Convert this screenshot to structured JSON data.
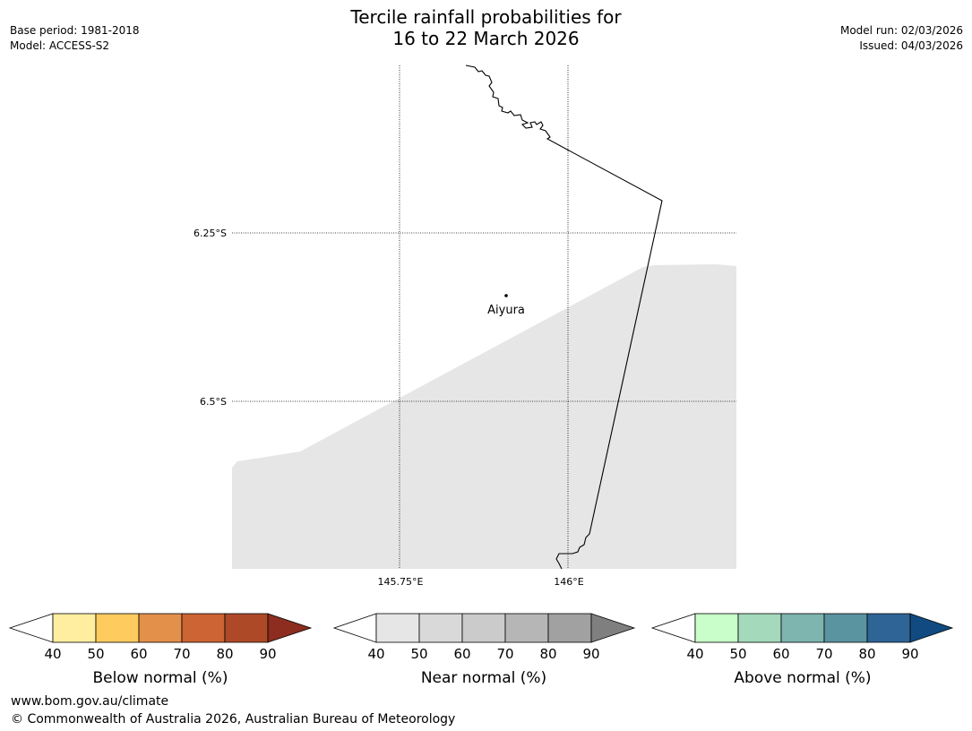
{
  "title": {
    "line1": "Tercile rainfall probabilities for",
    "line2": "16 to 22 March 2026"
  },
  "meta_left": {
    "base_period": "Base period: 1981-2018",
    "model": "Model: ACCESS-S2"
  },
  "meta_right": {
    "model_run": "Model run: 02/03/2026",
    "issued": "Issued: 04/03/2026"
  },
  "map": {
    "lat_labels": [
      "6.25°S",
      "6.5°S"
    ],
    "lon_labels": [
      "145.75°E",
      "146°E"
    ],
    "place": {
      "name": "Aiyura"
    },
    "shaded_region_color": "#e6e6e6"
  },
  "legends": [
    {
      "title": "Below normal (%)",
      "ticks": [
        "40",
        "50",
        "60",
        "70",
        "80",
        "90"
      ],
      "colors": [
        "#ffffff",
        "#ffeda0",
        "#fecb5f",
        "#e2904a",
        "#cc6433",
        "#ae4928",
        "#8c2d1f"
      ]
    },
    {
      "title": "Near normal (%)",
      "ticks": [
        "40",
        "50",
        "60",
        "70",
        "80",
        "90"
      ],
      "colors": [
        "#ffffff",
        "#e6e6e6",
        "#d9d9d9",
        "#cbcbcb",
        "#b6b6b6",
        "#a1a1a1",
        "#7f7f7f"
      ]
    },
    {
      "title": "Above normal (%)",
      "ticks": [
        "40",
        "50",
        "60",
        "70",
        "80",
        "90"
      ],
      "colors": [
        "#ffffff",
        "#c9fdc9",
        "#a5d9bc",
        "#7eb5ae",
        "#5a94a0",
        "#2f6496",
        "#104a80"
      ]
    }
  ],
  "footer": {
    "url": "www.bom.gov.au/climate",
    "copyright": "© Commonwealth of Australia 2026, Australian Bureau of Meteorology"
  }
}
